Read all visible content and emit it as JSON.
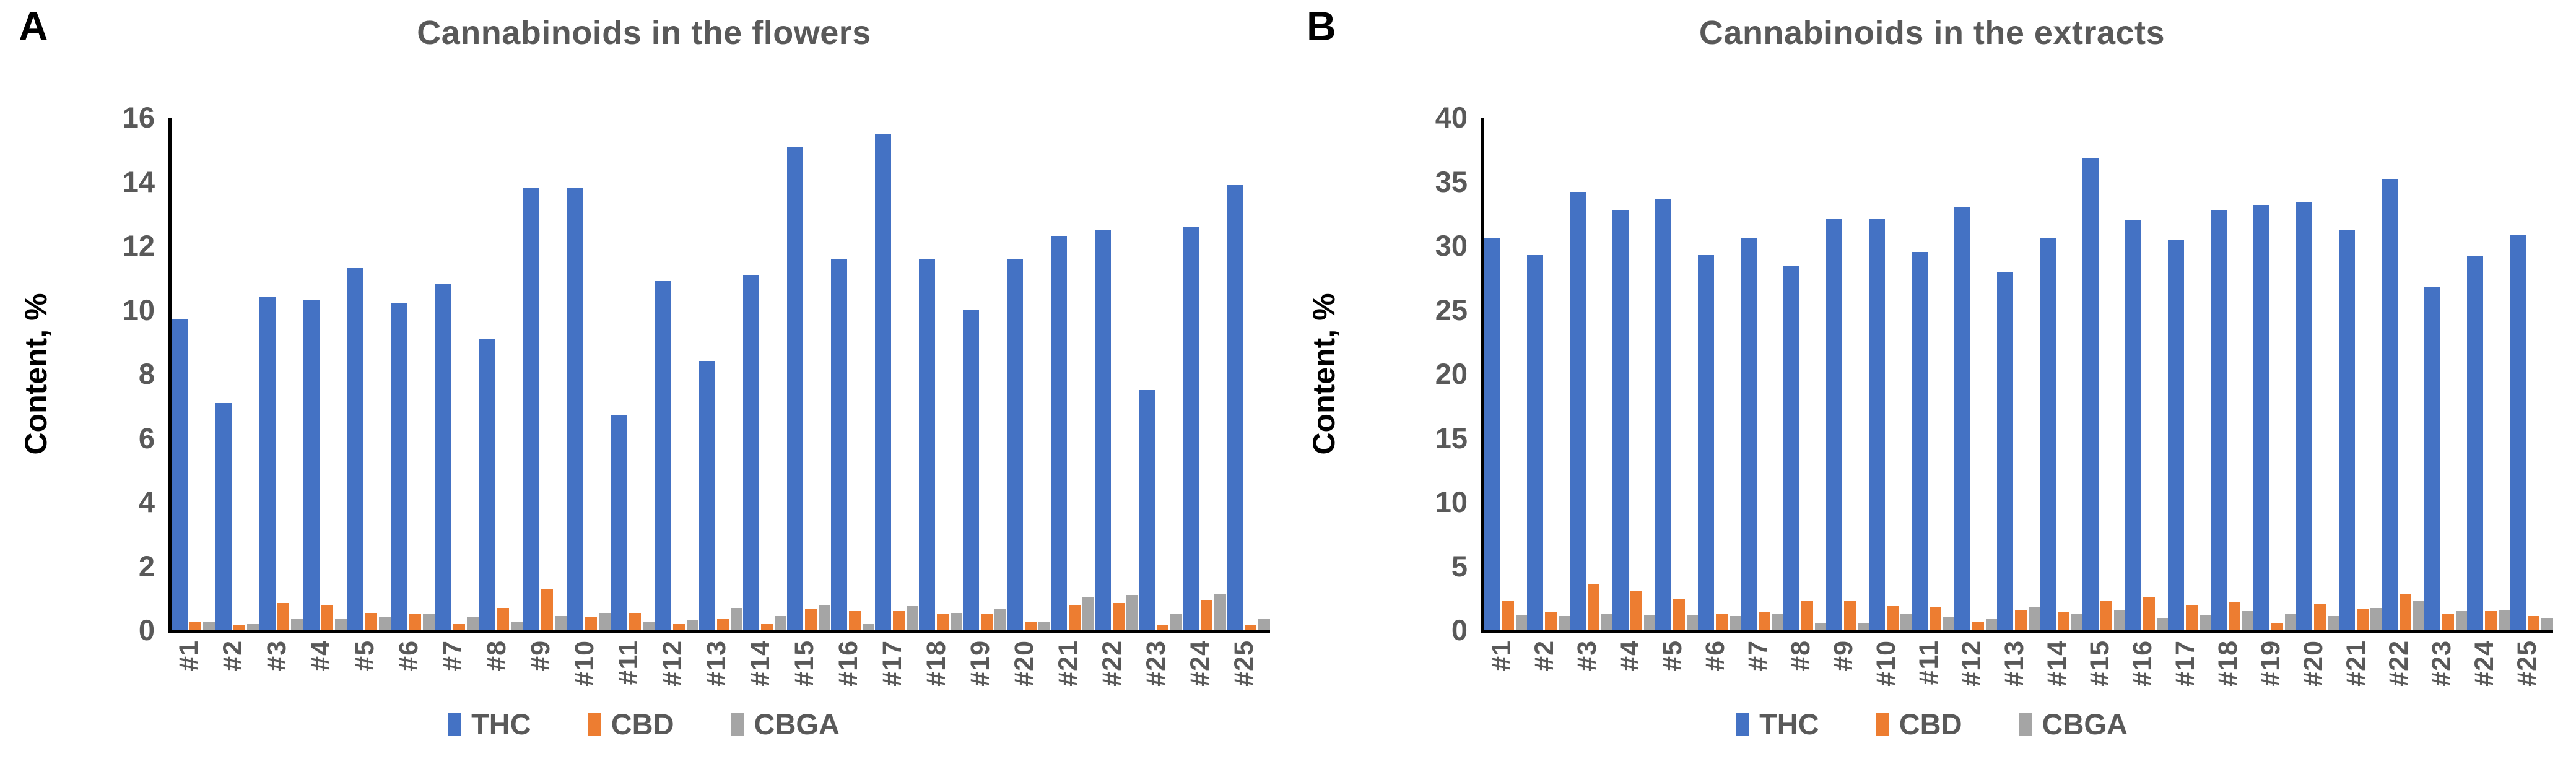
{
  "colors": {
    "THC": "#4472C4",
    "CBD": "#ED7D31",
    "CBGA": "#A5A5A5",
    "title_text": "#595959",
    "tick_text": "#595959",
    "axis_line": "#000000"
  },
  "chart_data": [
    {
      "type": "bar",
      "panel_label": "A",
      "title": "Cannabinoids in the flowers",
      "xlabel": "",
      "ylabel": "Content, %",
      "ylim": [
        0,
        16
      ],
      "ytick_step": 2,
      "grid": false,
      "legend_position": "bottom",
      "categories": [
        "#1",
        "#2",
        "#3",
        "#4",
        "#5",
        "#6",
        "#7",
        "#8",
        "#9",
        "#10",
        "#11",
        "#12",
        "#13",
        "#14",
        "#15",
        "#16",
        "#17",
        "#18",
        "#19",
        "#20",
        "#21",
        "#22",
        "#23",
        "#24",
        "#25"
      ],
      "series": [
        {
          "name": "THC",
          "values": [
            9.7,
            7.1,
            10.4,
            10.3,
            11.3,
            10.2,
            10.8,
            9.1,
            13.8,
            13.8,
            6.7,
            10.9,
            8.4,
            11.1,
            15.1,
            11.6,
            15.5,
            11.6,
            10.0,
            11.6,
            12.3,
            12.5,
            7.5,
            12.6,
            13.9
          ]
        },
        {
          "name": "CBD",
          "values": [
            0.25,
            0.15,
            0.85,
            0.8,
            0.55,
            0.5,
            0.2,
            0.7,
            1.3,
            0.4,
            0.55,
            0.2,
            0.35,
            0.2,
            0.65,
            0.6,
            0.6,
            0.5,
            0.5,
            0.25,
            0.8,
            0.85,
            0.15,
            0.95,
            0.15
          ]
        },
        {
          "name": "CBGA",
          "values": [
            0.25,
            0.2,
            0.35,
            0.35,
            0.4,
            0.5,
            0.4,
            0.25,
            0.45,
            0.55,
            0.25,
            0.3,
            0.7,
            0.45,
            0.8,
            0.2,
            0.75,
            0.55,
            0.65,
            0.25,
            1.05,
            1.1,
            0.5,
            1.15,
            0.35
          ]
        }
      ]
    },
    {
      "type": "bar",
      "panel_label": "B",
      "title": "Cannabinoids in the extracts",
      "xlabel": "",
      "ylabel": "Content, %",
      "ylim": [
        0,
        40
      ],
      "ytick_step": 5,
      "grid": false,
      "legend_position": "bottom",
      "categories": [
        "#1",
        "#2",
        "#3",
        "#4",
        "#5",
        "#6",
        "#7",
        "#8",
        "#9",
        "#10",
        "#11",
        "#12",
        "#13",
        "#14",
        "#15",
        "#16",
        "#17",
        "#18",
        "#19",
        "#20",
        "#21",
        "#22",
        "#23",
        "#24",
        "#25"
      ],
      "series": [
        {
          "name": "THC",
          "values": [
            30.6,
            29.3,
            34.2,
            32.8,
            33.6,
            29.3,
            30.6,
            28.4,
            32.1,
            32.1,
            29.5,
            33.0,
            27.9,
            30.6,
            36.8,
            32.0,
            30.5,
            32.8,
            33.2,
            33.4,
            31.2,
            35.2,
            26.8,
            29.2,
            30.8
          ]
        },
        {
          "name": "CBD",
          "values": [
            2.3,
            1.4,
            3.6,
            3.1,
            2.4,
            1.3,
            1.4,
            2.3,
            2.3,
            1.9,
            1.8,
            0.65,
            1.6,
            1.4,
            2.3,
            2.6,
            2.0,
            2.2,
            0.6,
            2.1,
            1.7,
            2.8,
            1.3,
            1.5,
            1.1
          ]
        },
        {
          "name": "CBGA",
          "values": [
            1.2,
            1.1,
            1.3,
            1.2,
            1.2,
            1.1,
            1.3,
            0.6,
            0.6,
            1.25,
            1.0,
            0.9,
            1.8,
            1.3,
            1.6,
            0.95,
            1.2,
            1.5,
            1.25,
            1.1,
            1.75,
            2.3,
            1.5,
            1.55,
            0.95
          ]
        }
      ]
    }
  ]
}
